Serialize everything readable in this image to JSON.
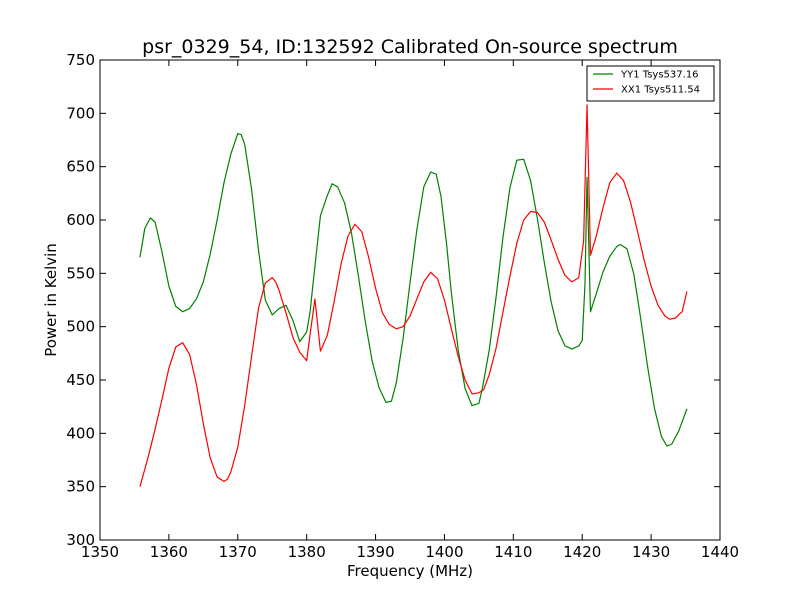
{
  "chart_data": {
    "type": "line",
    "title": "psr_0329_54, ID:132592 Calibrated On-source spectrum",
    "xlabel": "Frequency (MHz)",
    "ylabel": "Power in Kelvin",
    "xlim": [
      1350,
      1440
    ],
    "ylim": [
      300,
      750
    ],
    "xticks": [
      1350,
      1360,
      1370,
      1380,
      1390,
      1400,
      1410,
      1420,
      1430,
      1440
    ],
    "yticks": [
      300,
      350,
      400,
      450,
      500,
      550,
      600,
      650,
      700,
      750
    ],
    "grid": false,
    "legend_position": "top-right",
    "series": [
      {
        "name": "YY1 Tsys537.16",
        "color": "#008000",
        "x": [
          1355.8,
          1356.5,
          1357.3,
          1358.0,
          1359.0,
          1360.0,
          1361.0,
          1362.0,
          1363.0,
          1364.0,
          1365.0,
          1366.0,
          1367.0,
          1368.0,
          1369.0,
          1370.0,
          1370.5,
          1371.0,
          1372.0,
          1373.0,
          1374.0,
          1375.0,
          1376.0,
          1377.0,
          1378.0,
          1379.0,
          1380.0,
          1380.5,
          1381.0,
          1382.0,
          1383.0,
          1383.7,
          1384.5,
          1385.5,
          1386.5,
          1387.5,
          1388.5,
          1389.5,
          1390.5,
          1391.5,
          1392.3,
          1393.0,
          1394.0,
          1395.0,
          1396.0,
          1397.0,
          1398.0,
          1398.8,
          1399.5,
          1400.3,
          1401.0,
          1402.0,
          1403.0,
          1404.0,
          1405.0,
          1405.5,
          1406.5,
          1407.5,
          1408.5,
          1409.5,
          1410.5,
          1411.5,
          1412.5,
          1413.5,
          1414.5,
          1415.5,
          1416.5,
          1417.5,
          1418.5,
          1419.5,
          1420.0,
          1420.4,
          1420.7,
          1421.2,
          1422.0,
          1423.0,
          1424.0,
          1425.0,
          1425.5,
          1426.5,
          1427.5,
          1428.5,
          1429.5,
          1430.5,
          1431.5,
          1432.3,
          1433.0,
          1434.0,
          1435.2
        ],
        "y": [
          565,
          592,
          602,
          598,
          570,
          538,
          519,
          514,
          517,
          526,
          542,
          568,
          600,
          635,
          662,
          681,
          680,
          671,
          629,
          572,
          525,
          511,
          517,
          520,
          506,
          486,
          495,
          514,
          545,
          604,
          623,
          634,
          631,
          616,
          588,
          548,
          505,
          468,
          443,
          429,
          430,
          447,
          489,
          541,
          591,
          631,
          645,
          643,
          622,
          578,
          532,
          478,
          442,
          426,
          428,
          442,
          478,
          528,
          584,
          630,
          656,
          657,
          637,
          601,
          560,
          523,
          496,
          482,
          479,
          482,
          487,
          540,
          640,
          514,
          530,
          551,
          566,
          575,
          577,
          573,
          549,
          507,
          462,
          423,
          397,
          388,
          390,
          402,
          423
        ]
      },
      {
        "name": "XX1 Tsys511.54",
        "color": "#ff0000",
        "x": [
          1355.8,
          1357.0,
          1358.0,
          1359.0,
          1360.0,
          1361.0,
          1362.0,
          1363.0,
          1364.0,
          1365.0,
          1366.0,
          1367.0,
          1368.0,
          1368.5,
          1369.0,
          1370.0,
          1371.0,
          1372.0,
          1373.0,
          1374.0,
          1375.0,
          1375.5,
          1376.0,
          1377.0,
          1378.0,
          1379.0,
          1380.0,
          1380.5,
          1381.2,
          1382.0,
          1383.0,
          1384.0,
          1385.0,
          1386.0,
          1387.0,
          1388.0,
          1389.0,
          1390.0,
          1391.0,
          1392.0,
          1393.0,
          1394.0,
          1395.0,
          1396.0,
          1397.0,
          1398.0,
          1399.0,
          1400.0,
          1401.0,
          1402.0,
          1403.0,
          1404.0,
          1405.0,
          1405.7,
          1406.5,
          1407.5,
          1408.5,
          1409.5,
          1410.5,
          1411.5,
          1412.5,
          1413.5,
          1414.5,
          1415.5,
          1416.5,
          1417.5,
          1418.5,
          1419.5,
          1420.2,
          1420.7,
          1421.2,
          1422.0,
          1423.0,
          1424.0,
          1425.0,
          1426.0,
          1427.0,
          1428.0,
          1429.0,
          1430.0,
          1431.0,
          1432.0,
          1432.7,
          1433.5,
          1434.5,
          1435.2
        ],
        "y": [
          350,
          378,
          404,
          432,
          461,
          481,
          485,
          474,
          446,
          409,
          377,
          359,
          355,
          357,
          364,
          387,
          426,
          472,
          517,
          541,
          546,
          542,
          534,
          513,
          490,
          476,
          468,
          493,
          526,
          477,
          492,
          524,
          559,
          585,
          596,
          589,
          565,
          536,
          513,
          502,
          498,
          500,
          510,
          526,
          542,
          551,
          545,
          525,
          498,
          472,
          450,
          437,
          438,
          441,
          455,
          480,
          514,
          547,
          578,
          600,
          608,
          607,
          598,
          581,
          563,
          548,
          542,
          546,
          580,
          708,
          567,
          584,
          611,
          635,
          644,
          637,
          617,
          590,
          562,
          538,
          520,
          510,
          507,
          508,
          514,
          533
        ]
      }
    ]
  }
}
